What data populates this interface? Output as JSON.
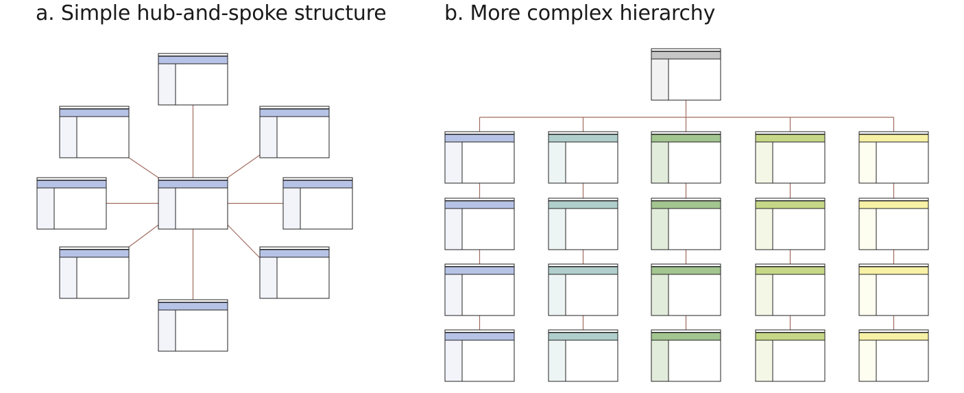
{
  "panels": {
    "a": {
      "title": "a. Simple hub-and-spoke structure",
      "structure": "hub-and-spoke",
      "spoke_count": 8,
      "color": {
        "header": "#b7c3e6",
        "sidebar": "#f2f4fa"
      }
    },
    "b": {
      "title": "b. More complex hierarchy",
      "structure": "hierarchy",
      "root_color": {
        "header": "#c6c6c6",
        "sidebar": "#f2f2f2"
      },
      "columns": [
        {
          "rows": 4,
          "header": "#b7c3e6",
          "sidebar": "#f2f4fa"
        },
        {
          "rows": 4,
          "header": "#b0cfcc",
          "sidebar": "#edf5f4"
        },
        {
          "rows": 4,
          "header": "#a3c590",
          "sidebar": "#e1ecdb"
        },
        {
          "rows": 4,
          "header": "#c6d887",
          "sidebar": "#f4f7e6"
        },
        {
          "rows": 4,
          "header": "#f7f1a6",
          "sidebar": "#fdfdf0"
        }
      ]
    }
  },
  "style": {
    "connector": "#a06a5e",
    "border": "#222222"
  }
}
